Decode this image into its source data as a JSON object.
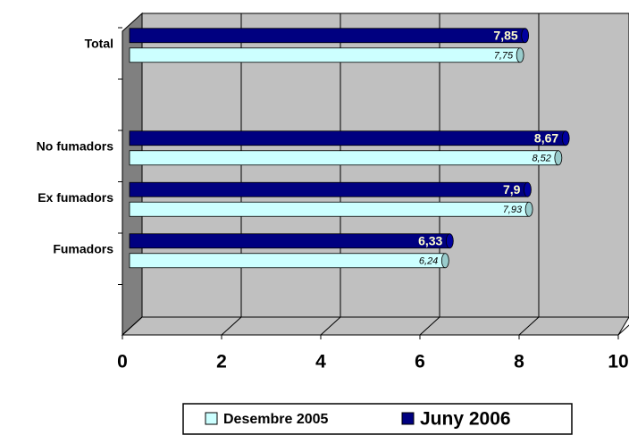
{
  "chart_data": {
    "type": "bar",
    "orientation": "horizontal",
    "categories": [
      "Total",
      null,
      "No fumadors",
      "Ex fumadors",
      "Fumadors",
      null
    ],
    "series": [
      {
        "name": "Desembre 2005",
        "color": "#ccffff",
        "values": [
          7.75,
          null,
          8.52,
          7.93,
          6.24,
          null
        ],
        "value_labels": [
          "7,75",
          null,
          "8,52",
          "7,93",
          "6,24",
          null
        ]
      },
      {
        "name": "Juny 2006",
        "color": "#000080",
        "values": [
          7.85,
          null,
          8.67,
          7.9,
          6.33,
          null
        ],
        "value_labels": [
          "7,85",
          null,
          "8,67",
          "7,9",
          "6,33",
          null
        ]
      }
    ],
    "xlim": [
      0,
      10
    ],
    "xticks": [
      0,
      2,
      4,
      6,
      8,
      10
    ],
    "grid": true,
    "legend": "bottom"
  }
}
